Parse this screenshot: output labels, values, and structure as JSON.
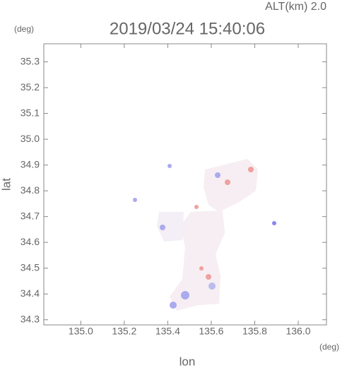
{
  "chart_data": {
    "type": "map",
    "title": "2019/03/24 15:40:06",
    "subtitle": "ALT(km) 2.0",
    "x_label": "lon",
    "y_label": "lat",
    "x_unit": "(deg)",
    "y_unit": "(deg)",
    "xlim": [
      134.83,
      136.13
    ],
    "ylim": [
      34.28,
      35.37
    ],
    "xticks": [
      {
        "value": 135,
        "label": "135.0"
      },
      135.2,
      135.4,
      135.6,
      135.8,
      {
        "value": 136,
        "label": "136.0"
      }
    ],
    "yticks": [
      34.3,
      34.4,
      34.5,
      34.6,
      34.7,
      34.8,
      34.9,
      {
        "value": 35,
        "label": "35.0"
      },
      35.1,
      35.2,
      35.3
    ]
  }
}
